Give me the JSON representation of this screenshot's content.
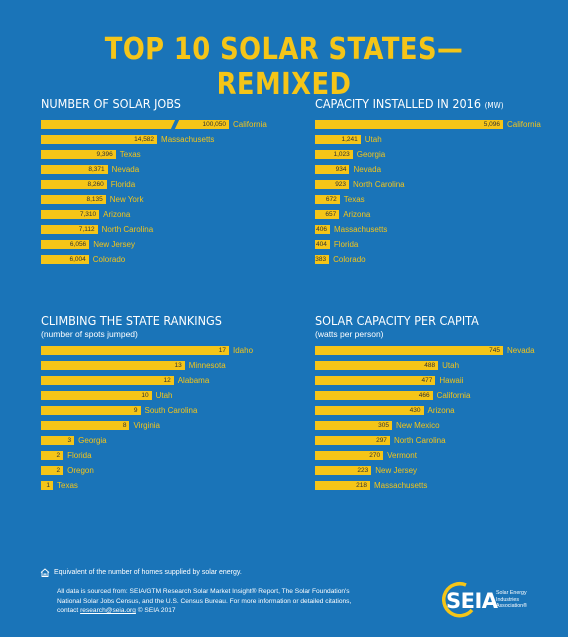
{
  "title": "TOP 10 SOLAR STATES—REMIXED",
  "colors": {
    "background": "#1a74b8",
    "bar": "#f5c518",
    "bar_text": "#333333",
    "label": "#f5c518"
  },
  "chart_data": [
    {
      "type": "bar",
      "title": "NUMBER OF SOLAR JOBS",
      "subtitle": "",
      "categories": [
        "California",
        "Massachusetts",
        "Texas",
        "Nevada",
        "Florida",
        "New York",
        "Arizona",
        "North Carolina",
        "New Jersey",
        "Colorado"
      ],
      "values": [
        100050,
        14582,
        9396,
        8371,
        8260,
        8135,
        7310,
        7112,
        6056,
        6004
      ],
      "value_labels": [
        "100,050",
        "14,582",
        "9,396",
        "8,371",
        "8,260",
        "8,135",
        "7,310",
        "7,112",
        "6,056",
        "6,004"
      ],
      "broken_axis_first": true
    },
    {
      "type": "bar",
      "title": "CAPACITY INSTALLED IN 2016",
      "title_unit": "(MW)",
      "subtitle": "",
      "categories": [
        "California",
        "Utah",
        "Georgia",
        "Nevada",
        "North Carolina",
        "Texas",
        "Arizona",
        "Massachusetts",
        "Florida",
        "Colorado"
      ],
      "values": [
        5096,
        1241,
        1023,
        934,
        923,
        672,
        657,
        406,
        404,
        383
      ],
      "value_labels": [
        "5,096",
        "1,241",
        "1,023",
        "934",
        "923",
        "672",
        "657",
        "406",
        "404",
        "383"
      ]
    },
    {
      "type": "bar",
      "title": "CLIMBING THE STATE RANKINGS",
      "subtitle": "(number of spots jumped)",
      "categories": [
        "Idaho",
        "Minnesota",
        "Alabama",
        "Utah",
        "South Carolina",
        "Virginia",
        "Georgia",
        "Florida",
        "Oregon",
        "Texas"
      ],
      "values": [
        17,
        13,
        12,
        10,
        9,
        8,
        3,
        2,
        2,
        1
      ],
      "value_labels": [
        "17",
        "13",
        "12",
        "10",
        "9",
        "8",
        "3",
        "2",
        "2",
        "1"
      ]
    },
    {
      "type": "bar",
      "title": "SOLAR CAPACITY PER CAPITA",
      "subtitle": "(watts per person)",
      "categories": [
        "Nevada",
        "Utah",
        "Hawaii",
        "California",
        "Arizona",
        "New Mexico",
        "North Carolina",
        "Vermont",
        "New Jersey",
        "Massachusetts"
      ],
      "values": [
        745,
        488,
        477,
        466,
        430,
        305,
        297,
        270,
        223,
        218
      ],
      "value_labels": [
        "745",
        "488",
        "477",
        "466",
        "430",
        "305",
        "297",
        "270",
        "223",
        "218"
      ]
    }
  ],
  "legend": {
    "icon": "house-icon",
    "text": "Equivalent of the number of homes supplied by solar energy."
  },
  "source": {
    "line1": "All data is sourced from: SEIA/GTM Research Solar Market Insight® Report, The Solar Foundation's",
    "line2": "National Solar Jobs Census, and the U.S. Census Bureau. For more information or detailed citations,",
    "line3_prefix": "contact ",
    "email": "research@seia.org",
    "line3_suffix": "  © SEIA 2017"
  },
  "logo": {
    "word": "SEIA",
    "tag1": "Solar Energy",
    "tag2": "Industries",
    "tag3": "Association®"
  }
}
